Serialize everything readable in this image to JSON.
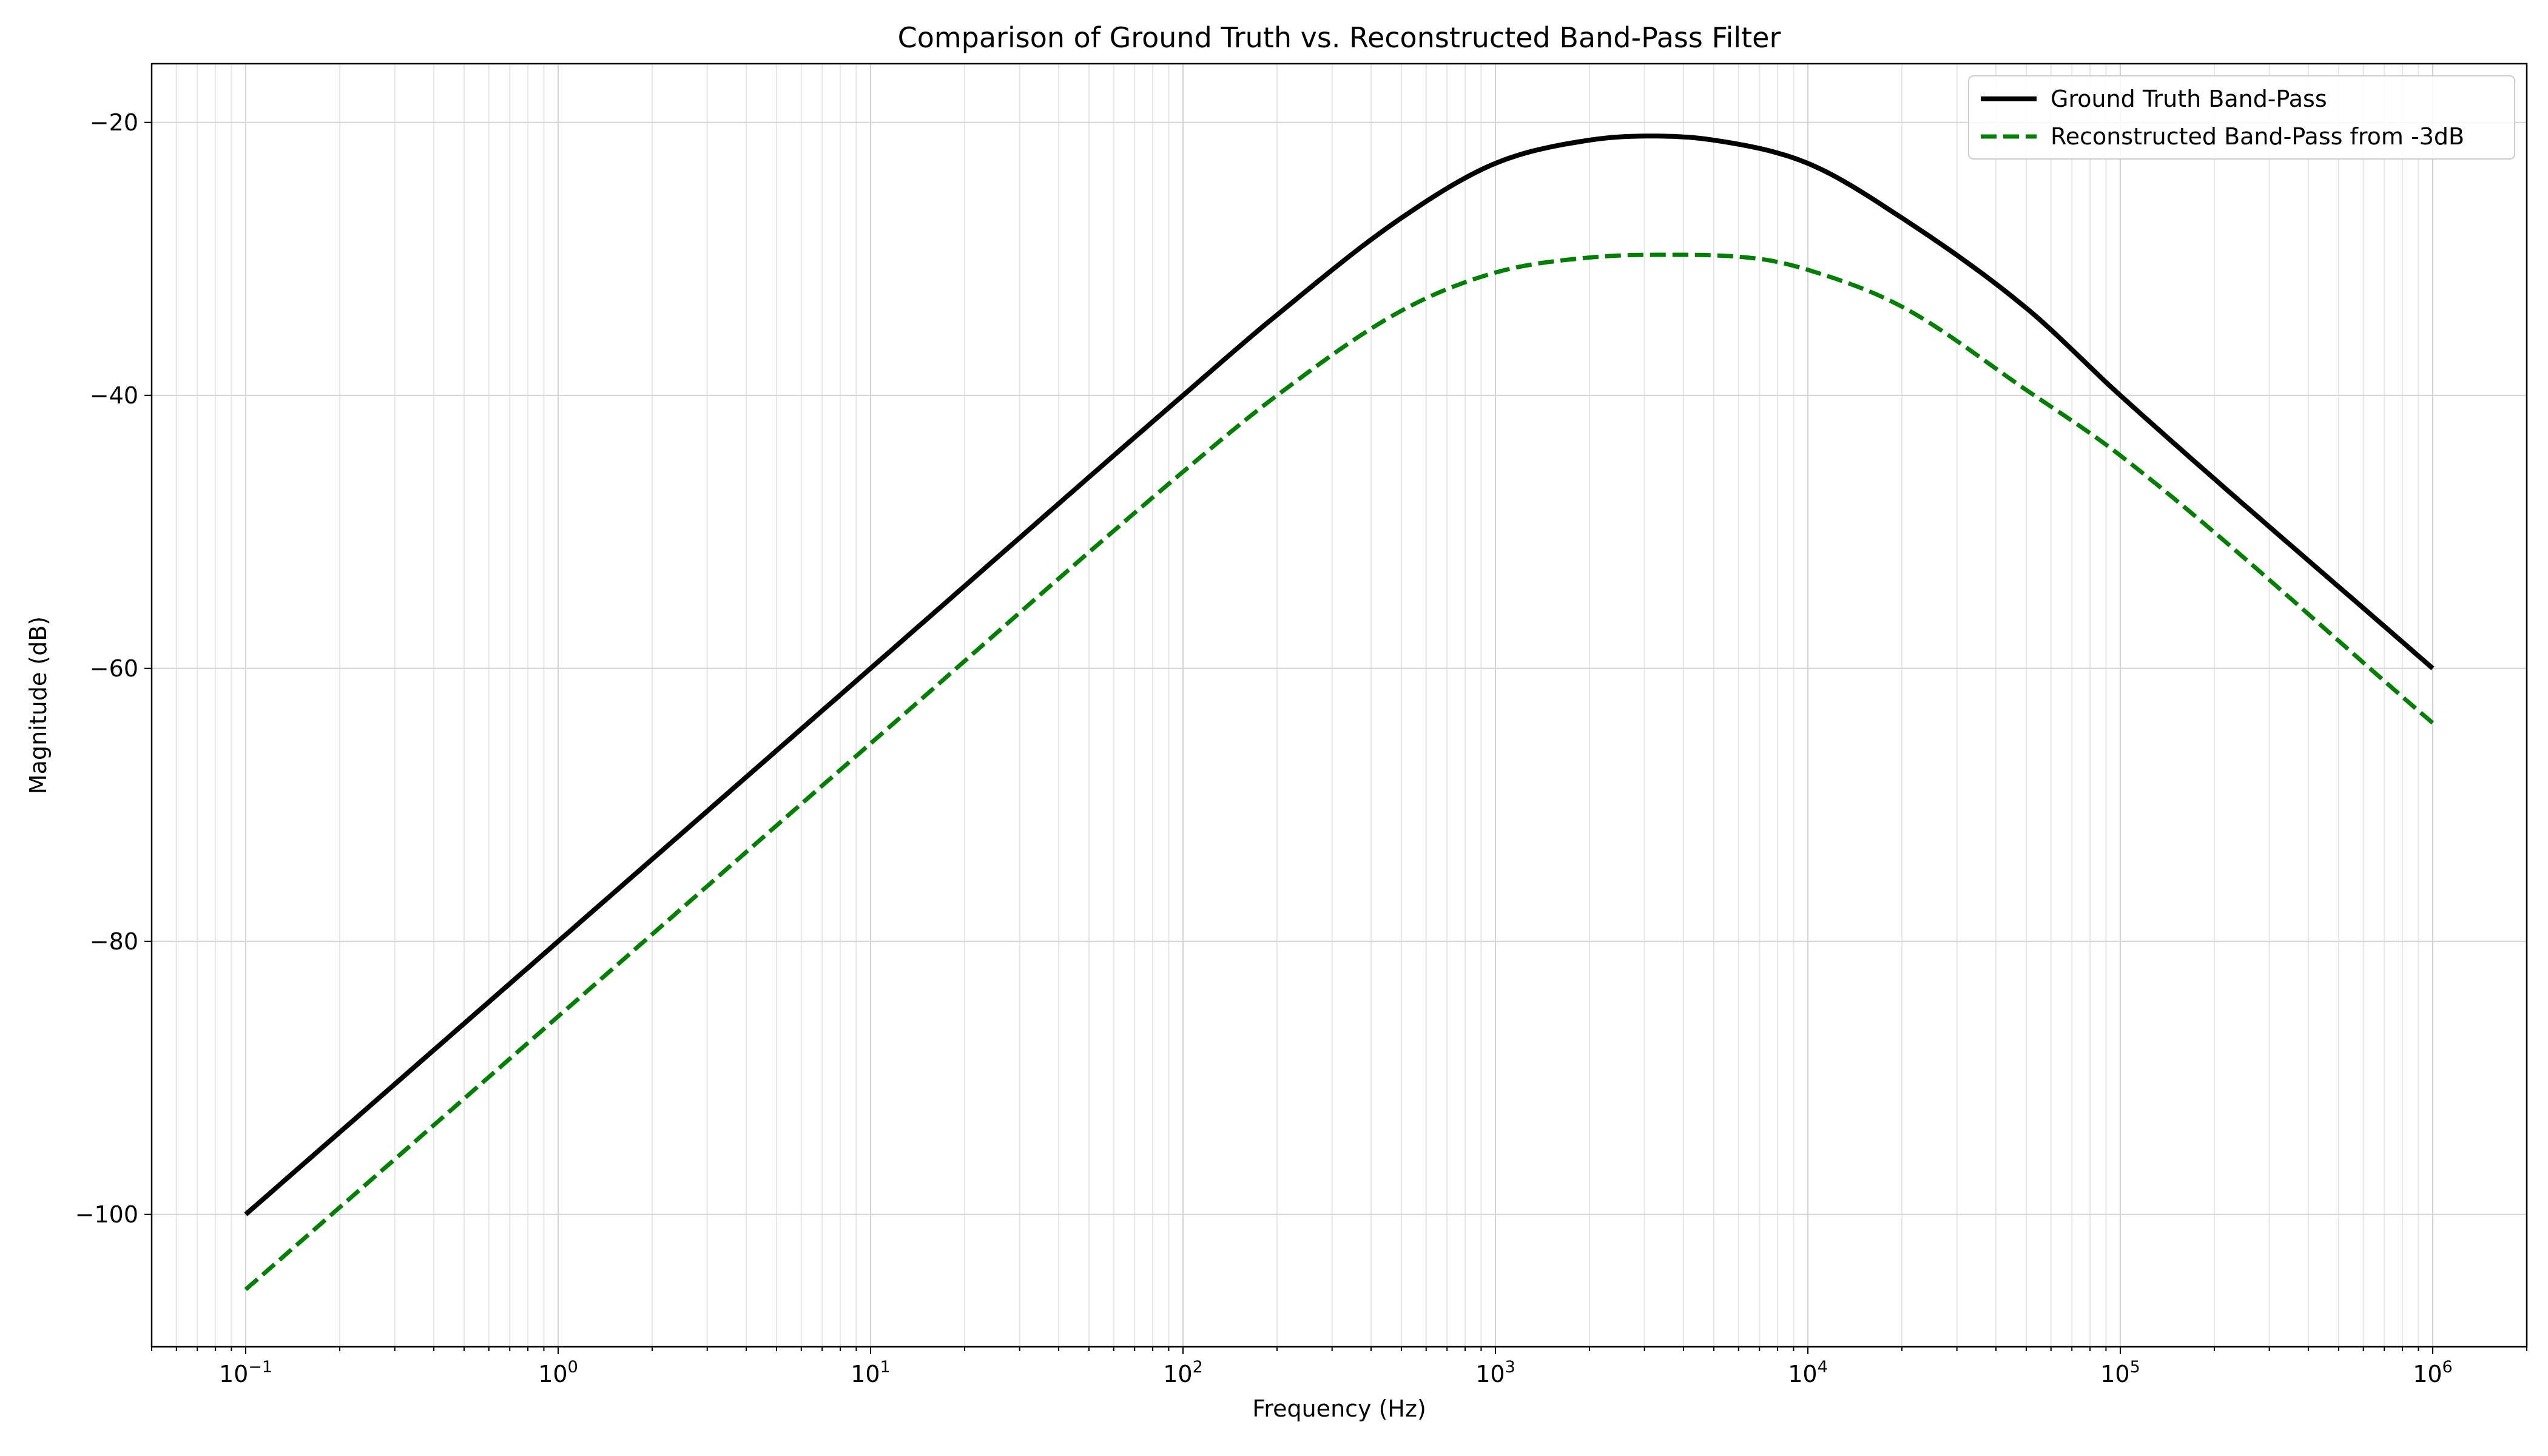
{
  "chart_data": {
    "type": "line",
    "title": "Comparison of Ground Truth vs. Reconstructed Band-Pass Filter",
    "xlabel": "Frequency (Hz)",
    "ylabel": "Magnitude (dB)",
    "xscale": "log",
    "xlim": [
      0.05,
      2000000
    ],
    "ylim": [
      -109.7,
      -15.7
    ],
    "x_ticks": [
      {
        "value": 0.1,
        "label": "10^-1"
      },
      {
        "value": 1,
        "label": "10^0"
      },
      {
        "value": 10,
        "label": "10^1"
      },
      {
        "value": 100,
        "label": "10^2"
      },
      {
        "value": 1000,
        "label": "10^3"
      },
      {
        "value": 10000,
        "label": "10^4"
      },
      {
        "value": 100000,
        "label": "10^5"
      },
      {
        "value": 1000000,
        "label": "10^6"
      }
    ],
    "y_ticks": [
      -100,
      -80,
      -60,
      -40,
      -20
    ],
    "y_tick_labels": [
      "−100",
      "−80",
      "−60",
      "−40",
      "−20"
    ],
    "grid": true,
    "legend_position": "top-right",
    "series": [
      {
        "name": "Ground Truth Band-Pass",
        "color": "#000000",
        "style": "solid",
        "x": [
          0.1,
          1,
          10,
          100,
          200,
          500,
          1000,
          2000,
          3162,
          5000,
          10000,
          20000,
          50000,
          100000,
          1000000
        ],
        "y": [
          -100,
          -80,
          -60,
          -40,
          -34.1,
          -27.0,
          -23.0,
          -21.3,
          -21.0,
          -21.3,
          -23.0,
          -27.0,
          -33.6,
          -40,
          -60
        ]
      },
      {
        "name": "Reconstructed Band-Pass from -3dB",
        "color": "#008000",
        "style": "dashed",
        "x": [
          0.1,
          1,
          10,
          100,
          200,
          500,
          1000,
          2000,
          3500,
          7000,
          10000,
          20000,
          50000,
          100000,
          1000000
        ],
        "y": [
          -105.5,
          -85.5,
          -65.5,
          -45.6,
          -40.0,
          -33.8,
          -31.0,
          -29.9,
          -29.7,
          -30.0,
          -30.8,
          -33.5,
          -39.6,
          -44.4,
          -64.0
        ]
      }
    ]
  }
}
